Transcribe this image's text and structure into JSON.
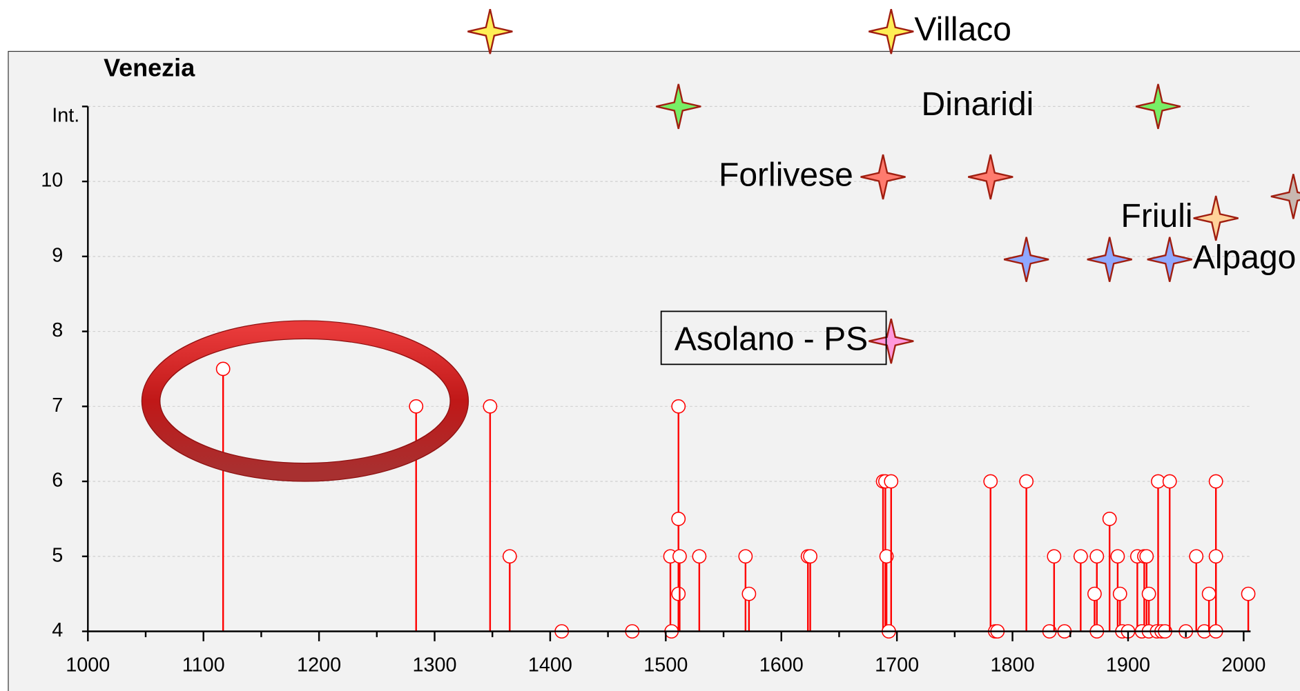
{
  "chart_data": {
    "type": "stem",
    "title": "Venezia",
    "xlim": [
      1000,
      2006
    ],
    "xticks": [
      1000,
      1100,
      1200,
      1300,
      1400,
      1500,
      1600,
      1700,
      1800,
      1900,
      2000
    ],
    "xminorticks": [
      1050,
      1150,
      1250,
      1350,
      1450,
      1550,
      1650,
      1750,
      1850,
      1950
    ],
    "ylim": [
      4,
      11
    ],
    "yticks": [
      4,
      5,
      6,
      7,
      8,
      9,
      10,
      {
        "value": 11,
        "label": "Int."
      }
    ],
    "grid": true,
    "series": [
      {
        "color": "#ff0000",
        "x": [
          1117,
          1284,
          1348,
          1365,
          1410,
          1471,
          1504,
          1505,
          1511,
          1511,
          1511,
          1512,
          1529,
          1569,
          1572,
          1623,
          1625,
          1688,
          1690,
          1691,
          1695,
          1693,
          1781,
          1785,
          1787,
          1812,
          1832,
          1836,
          1845,
          1859,
          1873,
          1871,
          1873,
          1884,
          1891,
          1893,
          1895,
          1900,
          1908,
          1914,
          1916,
          1918,
          1912,
          1918,
          1925,
          1926,
          1929,
          1932,
          1936,
          1950,
          1959,
          1966,
          1970,
          1976,
          1976,
          1976,
          2004
        ],
        "values": [
          7.5,
          7,
          7,
          5,
          4,
          4,
          5,
          4,
          7,
          5.5,
          4.5,
          5,
          5,
          5,
          4.5,
          5,
          5,
          6,
          6,
          5,
          6,
          4,
          6,
          4,
          4,
          6,
          4,
          5,
          4,
          5,
          5,
          4.5,
          4,
          5.5,
          5,
          4.5,
          4,
          4,
          5,
          5,
          5,
          4.5,
          4,
          4,
          4,
          6,
          4,
          4,
          6,
          4,
          5,
          4,
          4.5,
          6,
          5,
          4,
          4.5
        ]
      }
    ],
    "sources": [
      {
        "name": "Villaco",
        "color": "#ffee55",
        "x": [
          1348,
          1695
        ],
        "values": [
          12,
          12
        ]
      },
      {
        "name": "Dinaridi",
        "color": "#77ee66",
        "x": [
          1511,
          1926
        ],
        "values": [
          11,
          11
        ]
      },
      {
        "name": "Forlivese",
        "color": "#ff7b6e",
        "x": [
          1688,
          1781
        ],
        "values": [
          10.06,
          10.06
        ]
      },
      {
        "name": "Friuli",
        "color": "#ffd29a",
        "x": [
          1976
        ],
        "values": [
          9.51
        ]
      },
      {
        "name": "Alpago",
        "color": "#8fa8ff",
        "x": [
          1812,
          1884,
          1936
        ],
        "values": [
          8.96,
          8.96,
          8.96
        ]
      },
      {
        "name": "Asolano - PS",
        "color": "#ff99dd",
        "x": [
          1695
        ],
        "values": [
          7.87
        ]
      },
      {
        "color": "#c8b8b0",
        "x": [
          2043
        ],
        "values": [
          9.8
        ]
      }
    ]
  }
}
